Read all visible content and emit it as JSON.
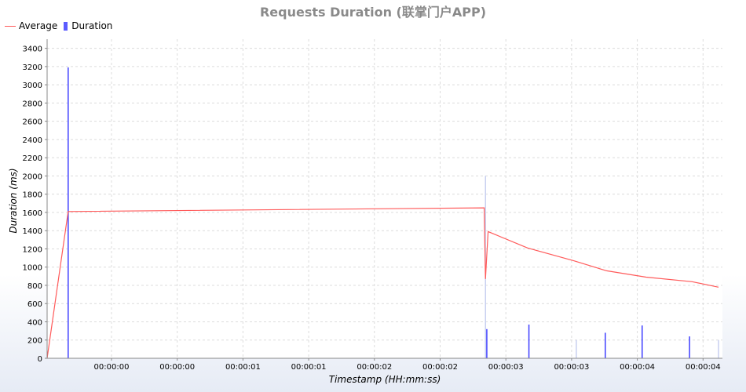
{
  "chart_data": {
    "type": "bar+line",
    "title": "Requests Duration (联掌门户APP)",
    "xlabel": "Timestamp (HH:mm:ss)",
    "ylabel": "Duration (ms)",
    "ylim": [
      0,
      3500
    ],
    "yticks": [
      0,
      200,
      400,
      600,
      800,
      1000,
      1200,
      1400,
      1600,
      1800,
      2000,
      2200,
      2400,
      2600,
      2800,
      3000,
      3200,
      3400
    ],
    "xtick_labels": [
      "00:00:00",
      "00:00:00",
      "00:00:01",
      "00:00:01",
      "00:00:02",
      "00:00:02",
      "00:00:03",
      "00:00:03",
      "00:00:04",
      "00:00:04"
    ],
    "legend": {
      "position": "top-left",
      "entries": [
        "Average",
        "Duration"
      ]
    },
    "grid": true,
    "series": [
      {
        "name": "Average",
        "kind": "line",
        "color": "#ff5a5a",
        "points": [
          {
            "t": 0.0,
            "v": 0
          },
          {
            "t": 0.16,
            "v": 1610
          },
          {
            "t": 3.32,
            "v": 1650
          },
          {
            "t": 3.33,
            "v": 870
          },
          {
            "t": 3.35,
            "v": 1390
          },
          {
            "t": 3.65,
            "v": 1210
          },
          {
            "t": 4.0,
            "v": 1070
          },
          {
            "t": 4.25,
            "v": 960
          },
          {
            "t": 4.55,
            "v": 890
          },
          {
            "t": 4.9,
            "v": 840
          },
          {
            "t": 5.1,
            "v": 780
          }
        ]
      },
      {
        "name": "Duration",
        "kind": "bar",
        "color": "#4040ff",
        "points": [
          {
            "t": 0.16,
            "v": 3190
          },
          {
            "t": 3.34,
            "v": 320
          },
          {
            "t": 3.66,
            "v": 370
          },
          {
            "t": 4.24,
            "v": 280
          },
          {
            "t": 4.52,
            "v": 360
          },
          {
            "t": 4.88,
            "v": 240
          }
        ]
      },
      {
        "name": "Duration (faded)",
        "kind": "bar",
        "color": "#c8d0f0",
        "points": [
          {
            "t": 3.33,
            "v": 2000
          },
          {
            "t": 4.02,
            "v": 200
          },
          {
            "t": 5.1,
            "v": 200
          }
        ]
      }
    ]
  }
}
